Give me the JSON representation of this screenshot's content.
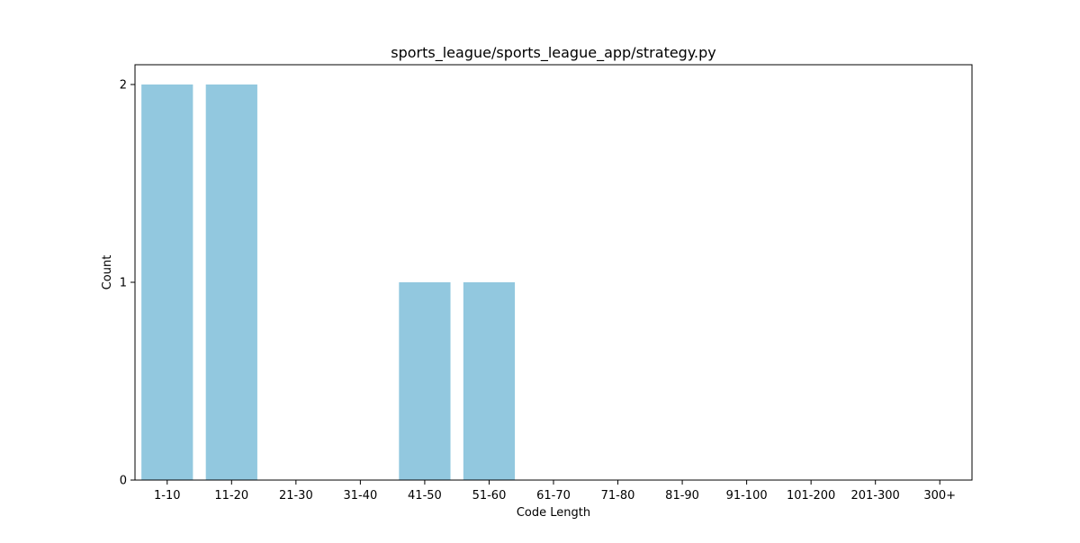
{
  "chart_data": {
    "type": "bar",
    "title": "sports_league/sports_league_app/strategy.py",
    "xlabel": "Code Length",
    "ylabel": "Count",
    "categories": [
      "1-10",
      "11-20",
      "21-30",
      "31-40",
      "41-50",
      "51-60",
      "61-70",
      "71-80",
      "81-90",
      "91-100",
      "101-200",
      "201-300",
      "300+"
    ],
    "values": [
      2,
      2,
      0,
      0,
      1,
      1,
      0,
      0,
      0,
      0,
      0,
      0,
      0
    ],
    "ylim": [
      0,
      2.1
    ],
    "yticks": [
      0,
      1,
      2
    ],
    "grid": false,
    "bar_color": "#92c8df"
  }
}
